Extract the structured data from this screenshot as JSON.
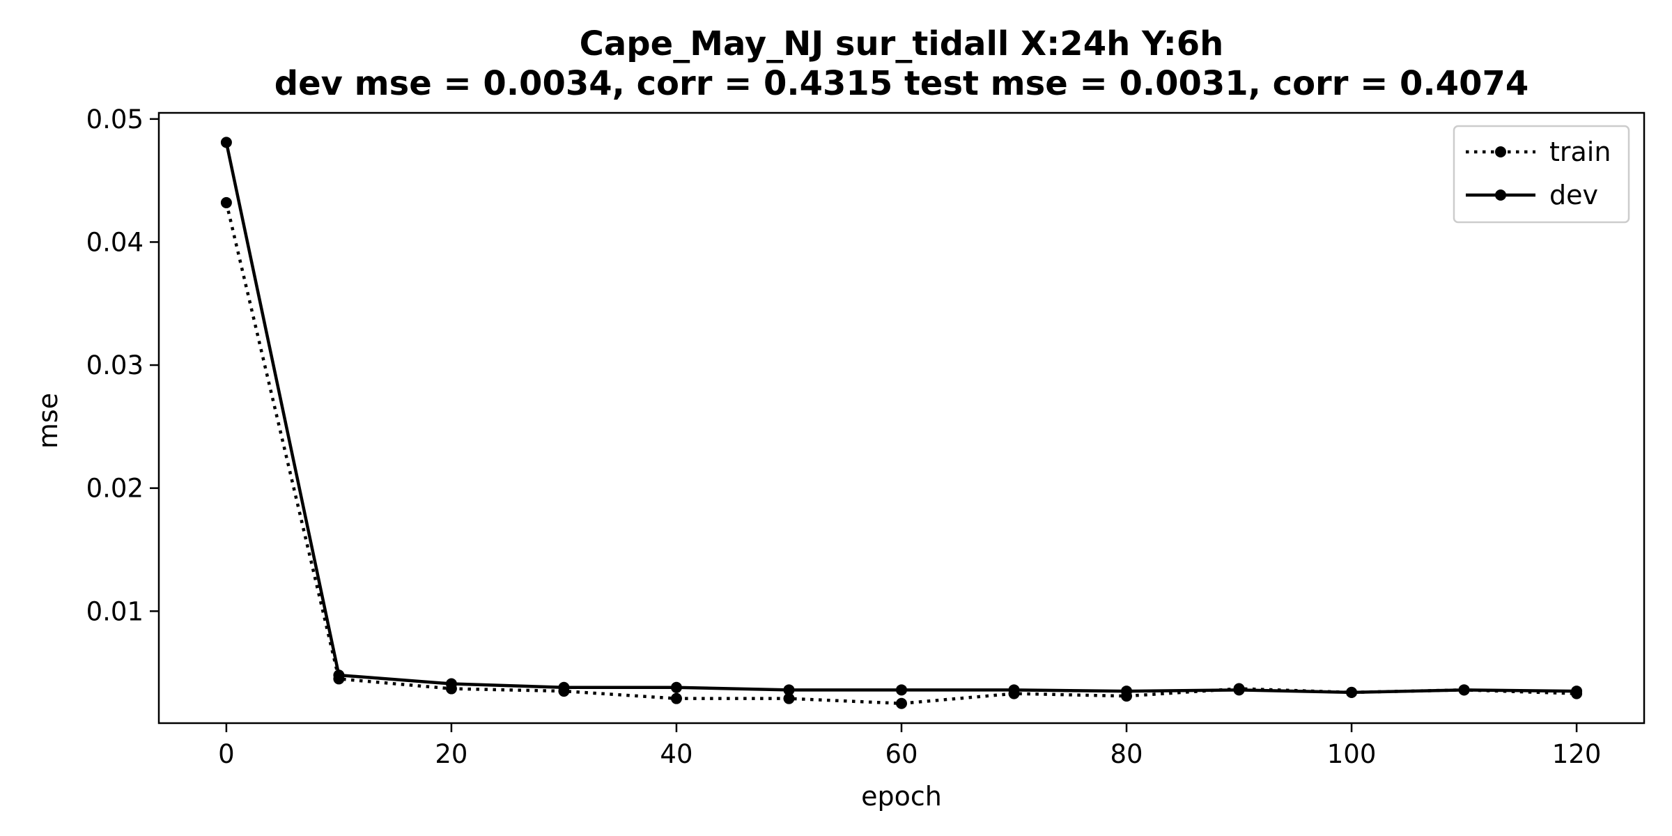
{
  "chart_data": {
    "type": "line",
    "title_line1": "Cape_May_NJ   sur_tidall   X:24h   Y:6h",
    "title_line2": "dev mse = 0.0034, corr = 0.4315   test mse = 0.0031, corr = 0.4074",
    "xlabel": "epoch",
    "ylabel": "mse",
    "xlim": [
      -6,
      126
    ],
    "ylim": [
      0.0009,
      0.0505
    ],
    "xticks": [
      0,
      20,
      40,
      60,
      80,
      100,
      120
    ],
    "yticks": [
      0.01,
      0.02,
      0.03,
      0.04,
      0.05
    ],
    "ytick_labels": [
      "0.01",
      "0.02",
      "0.03",
      "0.04",
      "0.05"
    ],
    "legend_position": "upper right",
    "grid": false,
    "x": [
      0,
      10,
      20,
      30,
      40,
      50,
      60,
      70,
      80,
      90,
      100,
      110,
      120
    ],
    "series": [
      {
        "name": "train",
        "style": "dotted",
        "color": "#000000",
        "values": [
          0.0432,
          0.0045,
          0.0037,
          0.0035,
          0.0029,
          0.0029,
          0.0025,
          0.0033,
          0.0031,
          0.0037,
          0.0034,
          0.0036,
          0.0033
        ]
      },
      {
        "name": "dev",
        "style": "solid",
        "color": "#000000",
        "values": [
          0.0481,
          0.0048,
          0.0041,
          0.0038,
          0.0038,
          0.0036,
          0.0036,
          0.0036,
          0.0035,
          0.0036,
          0.0034,
          0.0036,
          0.0035
        ]
      }
    ]
  }
}
